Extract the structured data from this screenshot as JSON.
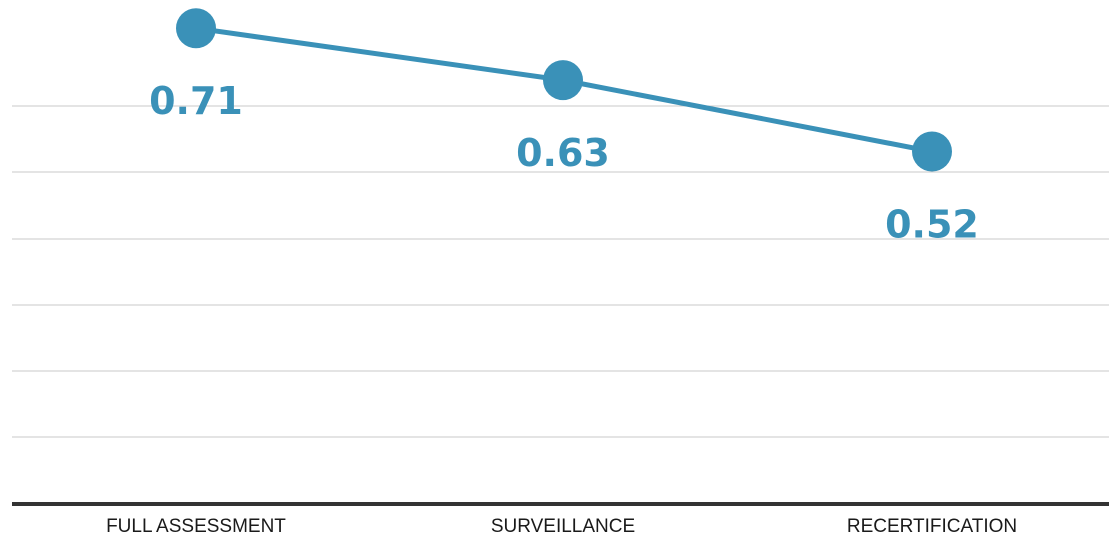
{
  "chart_data": {
    "type": "line",
    "categories": [
      "FULL ASSESSMENT",
      "SURVEILLANCE",
      "RECERTIFICATION"
    ],
    "series": [
      {
        "values": [
          0.71,
          0.63,
          0.52
        ],
        "color": "#3a91b8"
      }
    ],
    "data_labels": [
      "0.71",
      "0.63",
      "0.52"
    ],
    "ylim": [
      0.0,
      0.75
    ],
    "grid": true,
    "legend": "none",
    "colors": {
      "series": "#3a91b8",
      "label": "#3a91b8",
      "grid": "#c8c8c8",
      "axis": "#333333"
    }
  }
}
